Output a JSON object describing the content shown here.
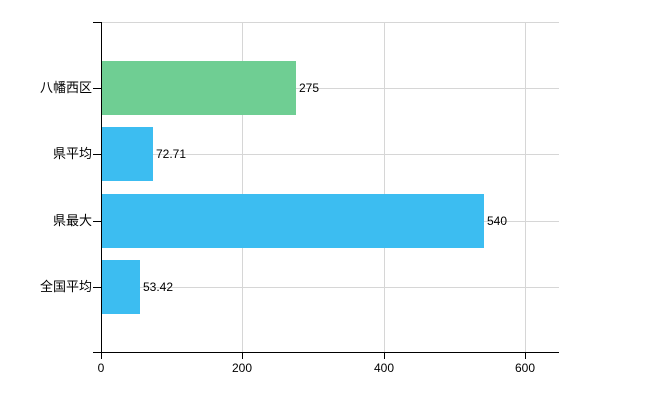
{
  "chart_data": {
    "type": "bar",
    "orientation": "horizontal",
    "title": "",
    "xlabel": "",
    "ylabel": "",
    "categories": [
      "八幡西区",
      "県平均",
      "県最大",
      "全国平均"
    ],
    "values": [
      275,
      72.71,
      540,
      53.42
    ],
    "value_labels": [
      "275",
      "72.71",
      "540",
      "53.42"
    ],
    "bar_colors": [
      "#6fce93",
      "#3cbdf1",
      "#3cbdf1",
      "#3cbdf1"
    ],
    "x_ticks": [
      0,
      200,
      400,
      600
    ],
    "x_tick_labels": [
      "0",
      "200",
      "400",
      "600"
    ],
    "xlim": [
      0,
      648
    ],
    "grid": true,
    "legend": false,
    "background_color": "#ffffff",
    "axis_color": "#000000",
    "grid_color": "#d6d6d6",
    "text_color": "#000000"
  }
}
